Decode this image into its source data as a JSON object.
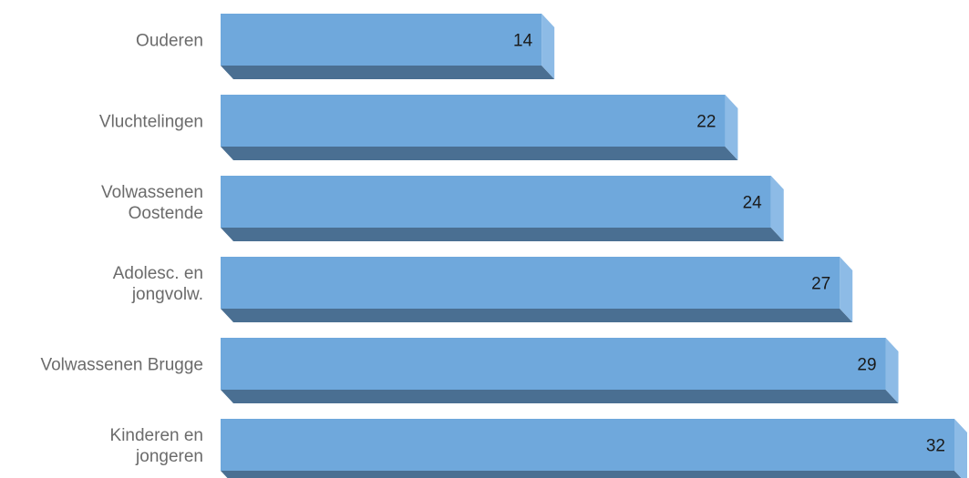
{
  "chart_data": {
    "type": "bar",
    "orientation": "horizontal",
    "categories": [
      [
        "Ouderen"
      ],
      [
        "Vluchtelingen"
      ],
      [
        "Volwassenen",
        "Oostende"
      ],
      [
        "Adolesc. en",
        "jongvolw."
      ],
      [
        "Volwassenen Brugge"
      ],
      [
        "Kinderen en",
        "jongeren"
      ]
    ],
    "values": [
      14,
      22,
      24,
      27,
      29,
      32
    ],
    "value_labels": [
      "14",
      "22",
      "24",
      "27",
      "29",
      "32"
    ],
    "title": "",
    "xlabel": "",
    "ylabel": "",
    "xlim": [
      0,
      32
    ],
    "grid": false,
    "legend": "none",
    "style": "3d",
    "colors": {
      "bar_front": "#6fa8dc",
      "bar_bottom": "#4a6f92",
      "bar_side": "#8dbbe6",
      "category_text": "#6b6b6b",
      "value_text": "#1a1a1a"
    }
  }
}
